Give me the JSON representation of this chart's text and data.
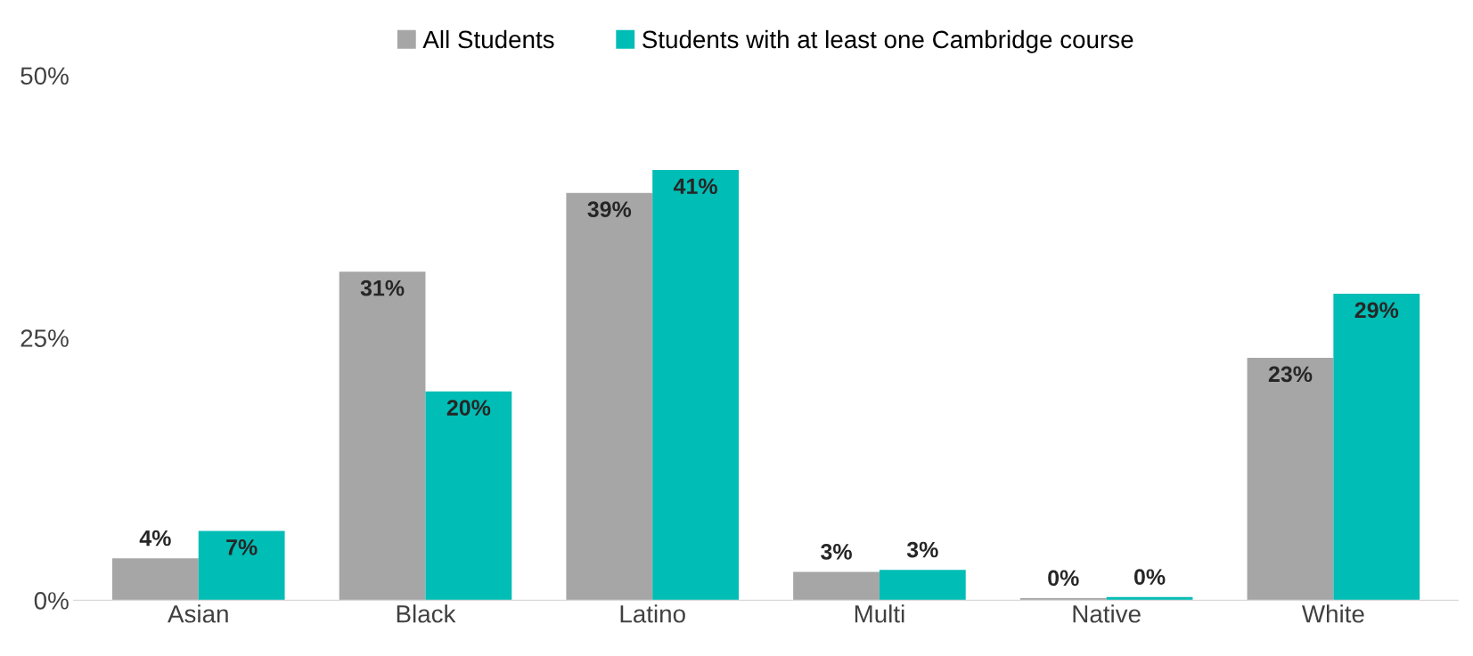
{
  "chart_data": {
    "type": "bar",
    "categories": [
      "Asian",
      "Black",
      "Latino",
      "Multi",
      "Native",
      "White"
    ],
    "series": [
      {
        "name": "All Students",
        "color": "#a6a6a6",
        "values": [
          4.0,
          31.3,
          38.8,
          2.7,
          0.2,
          23.1
        ],
        "value_labels": [
          "4%",
          "31%",
          "39%",
          "3%",
          "0%",
          "23%"
        ]
      },
      {
        "name": "Students with at least one Cambridge course",
        "color": "#00bdb5",
        "values": [
          6.6,
          19.9,
          41.0,
          2.9,
          0.3,
          29.2
        ],
        "value_labels": [
          "7%",
          "20%",
          "41%",
          "3%",
          "0%",
          "29%"
        ]
      }
    ],
    "ylim": [
      0,
      50
    ],
    "yticks": [
      {
        "value": 0,
        "label": "0%"
      },
      {
        "value": 25,
        "label": "25%"
      },
      {
        "value": 50,
        "label": "50%"
      }
    ],
    "grid": false,
    "legend": "top"
  }
}
